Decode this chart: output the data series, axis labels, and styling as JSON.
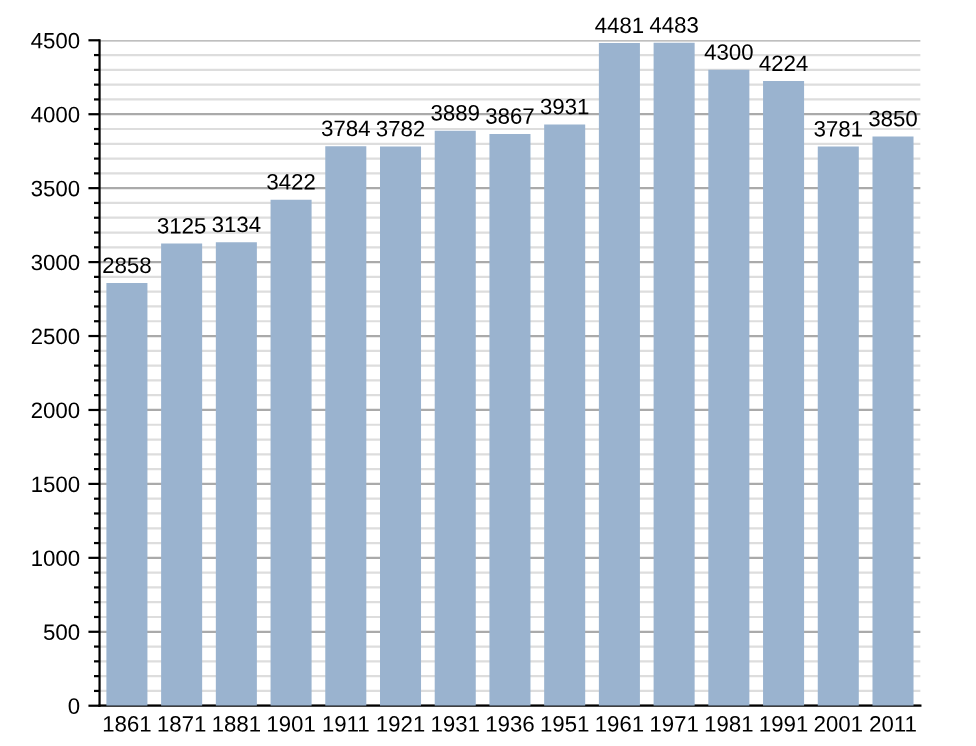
{
  "chart_data": {
    "type": "bar",
    "categories": [
      "1861",
      "1871",
      "1881",
      "1901",
      "1911",
      "1921",
      "1931",
      "1936",
      "1951",
      "1961",
      "1971",
      "1981",
      "1991",
      "2001",
      "2011"
    ],
    "values": [
      2858,
      3125,
      3134,
      3422,
      3784,
      3782,
      3889,
      3867,
      3931,
      4481,
      4483,
      4300,
      4224,
      3781,
      3850
    ],
    "color": "#9ab3cf",
    "data_labels": true,
    "grid": "y",
    "legend": false,
    "ylim": [
      0,
      4500
    ],
    "yticks": [
      0,
      {
        "value": 100,
        "label": null
      },
      {
        "value": 200,
        "label": null
      },
      {
        "value": 300,
        "label": null
      },
      {
        "value": 400,
        "label": null
      },
      500,
      {
        "value": 600,
        "label": null
      },
      {
        "value": 700,
        "label": null
      },
      {
        "value": 800,
        "label": null
      },
      {
        "value": 900,
        "label": null
      },
      1000,
      {
        "value": 1100,
        "label": null
      },
      {
        "value": 1200,
        "label": null
      },
      {
        "value": 1300,
        "label": null
      },
      {
        "value": 1400,
        "label": null
      },
      1500,
      {
        "value": 1600,
        "label": null
      },
      {
        "value": 1700,
        "label": null
      },
      {
        "value": 1800,
        "label": null
      },
      {
        "value": 1900,
        "label": null
      },
      2000,
      {
        "value": 2100,
        "label": null
      },
      {
        "value": 2200,
        "label": null
      },
      {
        "value": 2300,
        "label": null
      },
      {
        "value": 2400,
        "label": null
      },
      2500,
      {
        "value": 2600,
        "label": null
      },
      {
        "value": 2700,
        "label": null
      },
      {
        "value": 2800,
        "label": null
      },
      {
        "value": 2900,
        "label": null
      },
      3000,
      {
        "value": 3100,
        "label": null
      },
      {
        "value": 3200,
        "label": null
      },
      {
        "value": 3300,
        "label": null
      },
      {
        "value": 3400,
        "label": null
      },
      3500,
      {
        "value": 3600,
        "label": null
      },
      {
        "value": 3700,
        "label": null
      },
      {
        "value": 3800,
        "label": null
      },
      {
        "value": 3900,
        "label": null
      },
      4000,
      {
        "value": 4100,
        "label": null
      },
      {
        "value": 4200,
        "label": null
      },
      {
        "value": 4300,
        "label": null
      },
      {
        "value": 4400,
        "label": null
      },
      4500
    ]
  }
}
